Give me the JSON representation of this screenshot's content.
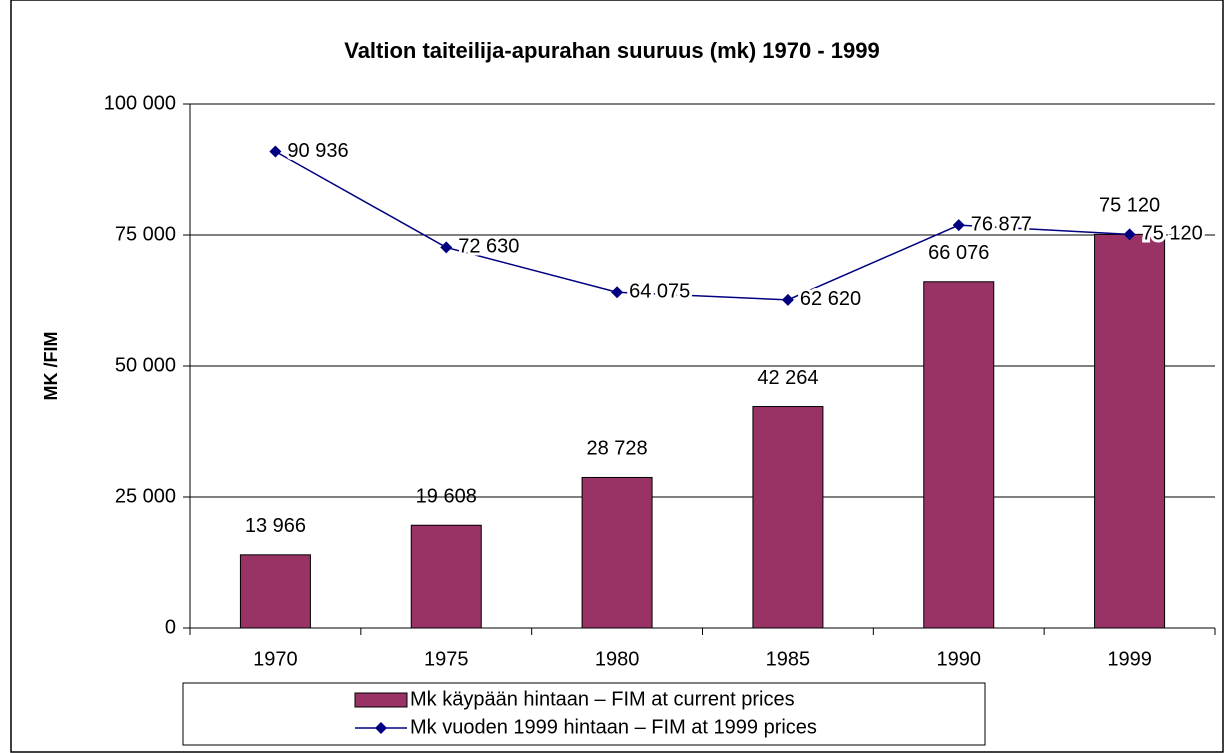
{
  "chart_data": {
    "type": "bar",
    "title": "Valtion taiteilija-apurahan suuruus (mk) 1970 - 1999",
    "y_label": "MK /FIM",
    "categories": [
      "1970",
      "1975",
      "1980",
      "1985",
      "1990",
      "1999"
    ],
    "series": [
      {
        "name": "Mk käypään hintaan – FIM at current prices",
        "type": "bar",
        "color": "#993366",
        "values": [
          13966,
          19608,
          28728,
          42264,
          66076,
          75120
        ],
        "value_labels": [
          "13 966",
          "19 608",
          "28 728",
          "42 264",
          "66 076",
          "75 120"
        ]
      },
      {
        "name": "Mk vuoden 1999 hintaan  – FIM at 1999 prices",
        "type": "line",
        "color": "#000080",
        "values": [
          90936,
          72630,
          64075,
          62620,
          76877,
          75120
        ],
        "value_labels": [
          "90 936",
          "72 630",
          "64 075",
          "62 620",
          "76 877",
          "75 120"
        ]
      }
    ],
    "ylim": [
      0,
      100000
    ],
    "yticks": [
      0,
      {
        "value": 25000,
        "label": "25 000"
      },
      {
        "value": 50000,
        "label": "50 000"
      },
      {
        "value": 75000,
        "label": "75 000"
      },
      {
        "value": 100000,
        "label": "100 000"
      }
    ],
    "grid": true,
    "legend": "bottom"
  }
}
